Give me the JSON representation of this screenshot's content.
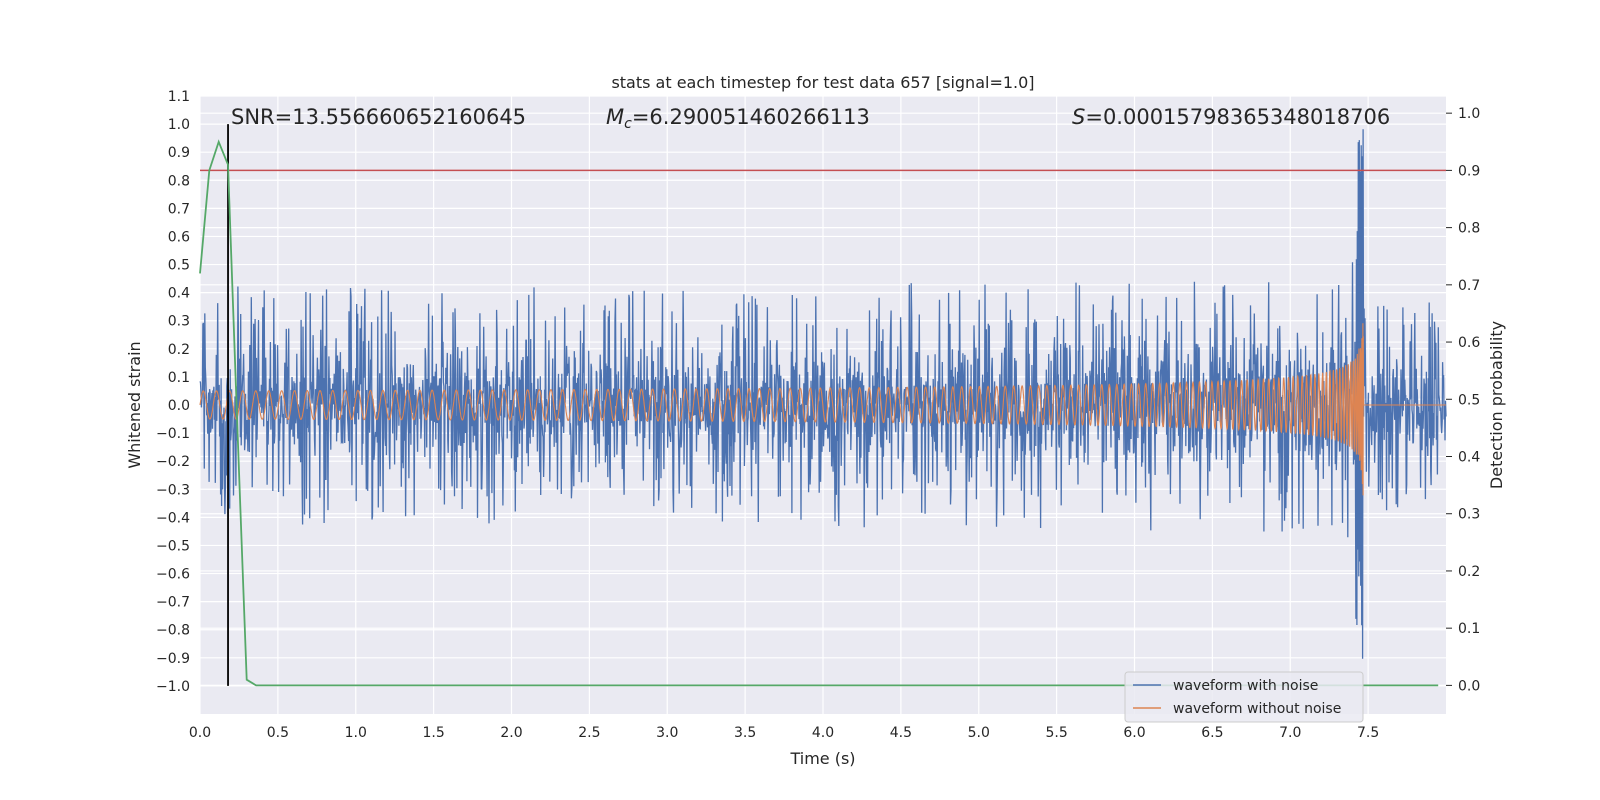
{
  "chart_data": {
    "type": "line",
    "title": "stats at each timestep for test data 657 [signal=1.0]",
    "xlabel": "Time (s)",
    "ylabel": "Whitened strain",
    "y2label": "Detection probability",
    "xlim": [
      0.0,
      8.0
    ],
    "ylim": [
      -1.1,
      1.1
    ],
    "y2lim": [
      -0.05,
      1.03
    ],
    "xticks": [
      "0.0",
      "0.5",
      "1.0",
      "1.5",
      "2.0",
      "2.5",
      "3.0",
      "3.5",
      "4.0",
      "4.5",
      "5.0",
      "5.5",
      "6.0",
      "6.5",
      "7.0",
      "7.5"
    ],
    "xtick_values": [
      0.0,
      0.5,
      1.0,
      1.5,
      2.0,
      2.5,
      3.0,
      3.5,
      4.0,
      4.5,
      5.0,
      5.5,
      6.0,
      6.5,
      7.0,
      7.5
    ],
    "yticks": [
      "1.1",
      "1.0",
      "0.9",
      "0.8",
      "0.7",
      "0.6",
      "0.5",
      "0.4",
      "0.3",
      "0.2",
      "0.1",
      "0.0",
      "−0.1",
      "−0.2",
      "−0.3",
      "−0.4",
      "−0.5",
      "−0.6",
      "−0.7",
      "−0.8",
      "−0.9",
      "−1.0"
    ],
    "ytick_values": [
      1.1,
      1.0,
      0.9,
      0.8,
      0.7,
      0.6,
      0.5,
      0.4,
      0.3,
      0.2,
      0.1,
      0.0,
      -0.1,
      -0.2,
      -0.3,
      -0.4,
      -0.5,
      -0.6,
      -0.7,
      -0.8,
      -0.9,
      -1.0
    ],
    "y2ticks": [
      "1.0",
      "0.9",
      "0.8",
      "0.7",
      "0.6",
      "0.5",
      "0.4",
      "0.3",
      "0.2",
      "0.1",
      "0.0"
    ],
    "y2tick_values": [
      1.0,
      0.9,
      0.8,
      0.7,
      0.6,
      0.5,
      0.4,
      0.3,
      0.2,
      0.1,
      0.0
    ],
    "annotations": {
      "snr": "SNR=13.556660652160645",
      "mc_symbol": "M",
      "mc_sub": "c",
      "mc_value": "=6.290051460266113",
      "s_symbol": "S",
      "s_value": "=0.00015798365348018706"
    },
    "threshold": 0.9,
    "detection_time": 0.18,
    "merger_time": 7.47,
    "series": [
      {
        "name": "waveform with noise",
        "color": "#4c72b0",
        "noise_amplitude": 0.3,
        "peak_amplitude": 1.0
      },
      {
        "name": "waveform without noise",
        "color": "#dd8452",
        "start_amplitude": 0.05,
        "peak_amplitude": 1.0
      },
      {
        "name": "detection probability",
        "color": "#55a868",
        "x": [
          0.0,
          0.06,
          0.12,
          0.18,
          0.24,
          0.3,
          0.36,
          0.42,
          7.95
        ],
        "y": [
          0.72,
          0.9,
          0.95,
          0.91,
          0.45,
          0.01,
          0.0,
          0.0,
          0.0
        ]
      }
    ],
    "colors": {
      "threshold": "#c44e52",
      "detection_line": "#000000",
      "background": "#eaeaf2",
      "grid": "#ffffff"
    },
    "legend": {
      "placement": "lower-right",
      "entries": [
        "waveform with noise",
        "waveform without noise"
      ]
    }
  }
}
